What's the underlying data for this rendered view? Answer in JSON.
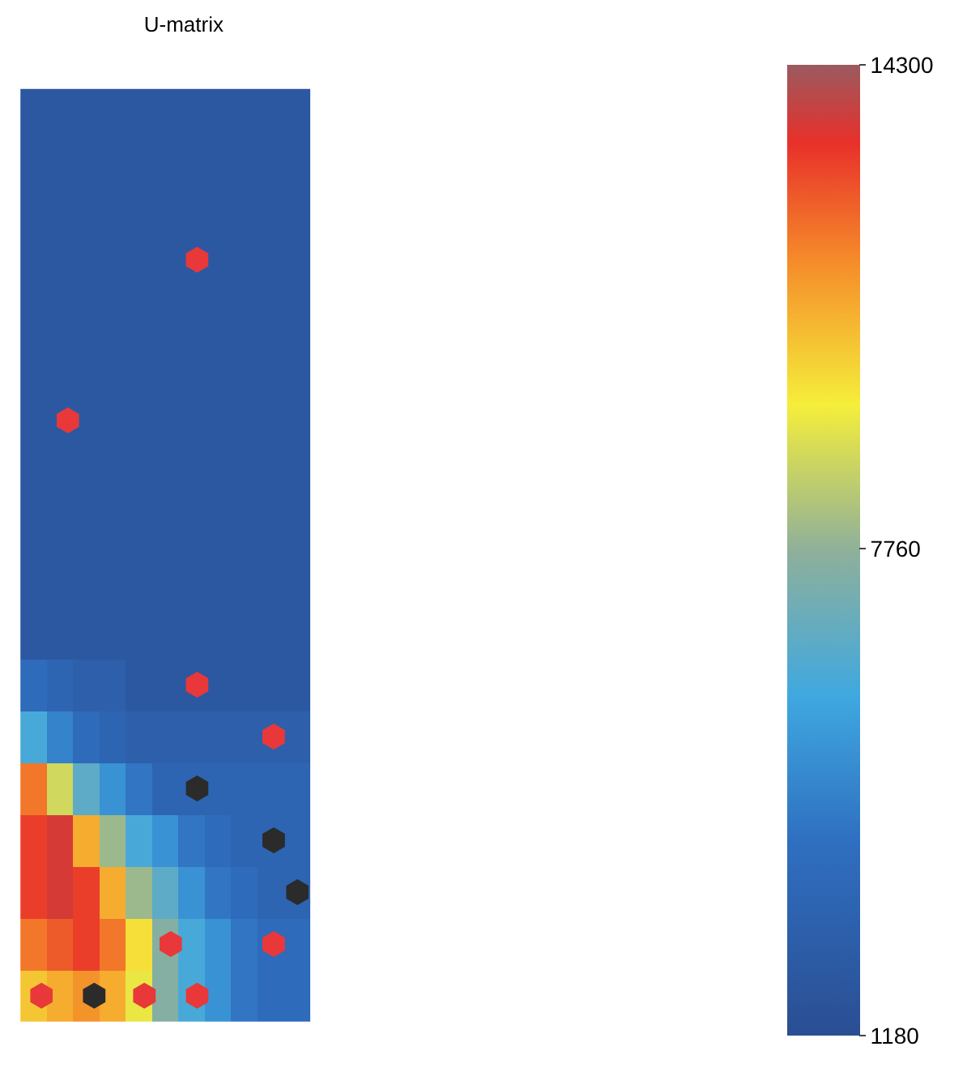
{
  "chart_data": {
    "type": "heatmap",
    "title": "U-matrix",
    "categories": [
      null,
      null,
      null,
      null,
      null,
      null,
      null,
      null,
      null,
      null,
      null
    ],
    "y_categories": [
      null,
      null,
      null,
      null,
      null,
      null,
      null,
      null,
      null,
      null,
      null,
      null,
      null,
      null,
      null,
      null,
      null,
      null
    ],
    "cells": [
      [
        2000,
        2000,
        2000,
        2000,
        2000,
        2000,
        2000,
        2000,
        2000,
        2000,
        2000
      ],
      [
        2000,
        2000,
        2000,
        2000,
        2000,
        2000,
        2000,
        2000,
        2000,
        2000,
        2000
      ],
      [
        2000,
        2000,
        2000,
        2000,
        2000,
        2000,
        2000,
        2000,
        2000,
        2000,
        2000
      ],
      [
        2000,
        2000,
        2000,
        2000,
        2000,
        2000,
        2000,
        2000,
        2000,
        2000,
        2000
      ],
      [
        2000,
        2000,
        2000,
        2000,
        2000,
        2000,
        2000,
        2000,
        2000,
        2000,
        2000
      ],
      [
        2000,
        2000,
        2000,
        2000,
        2000,
        2000,
        2000,
        2000,
        2000,
        2000,
        2000
      ],
      [
        2000,
        2000,
        2000,
        2000,
        2000,
        2000,
        2000,
        2000,
        2000,
        2000,
        2000
      ],
      [
        2000,
        2000,
        2000,
        2000,
        2000,
        2000,
        2000,
        2000,
        2000,
        2000,
        2000
      ],
      [
        2000,
        2000,
        2000,
        2000,
        2000,
        2000,
        2000,
        2000,
        2000,
        2000,
        2000
      ],
      [
        2000,
        2000,
        2000,
        2000,
        2000,
        2000,
        2000,
        2000,
        2000,
        2000,
        2000
      ],
      [
        2000,
        2000,
        2000,
        2000,
        2000,
        2000,
        2000,
        2000,
        2000,
        2000,
        2000
      ],
      [
        3500,
        3000,
        2500,
        2500,
        2000,
        2000,
        2000,
        2000,
        2000,
        2000,
        2000
      ],
      [
        6000,
        4500,
        3500,
        3000,
        2500,
        2500,
        2500,
        2500,
        2500,
        2500,
        2500
      ],
      [
        12000,
        9000,
        6500,
        5000,
        4000,
        3000,
        3000,
        3000,
        3000,
        3000,
        3000
      ],
      [
        13000,
        13500,
        11000,
        8000,
        6000,
        5000,
        4000,
        3500,
        3000,
        3000,
        3000
      ],
      [
        13000,
        13500,
        13000,
        11000,
        8000,
        6500,
        5000,
        4000,
        3500,
        3000,
        3000
      ],
      [
        12000,
        12500,
        13000,
        12000,
        10000,
        7500,
        6000,
        5000,
        4000,
        3500,
        3500
      ],
      [
        10500,
        11000,
        11500,
        11000,
        9500,
        7500,
        6000,
        5000,
        4000,
        3500,
        3500
      ]
    ],
    "clim": [
      1180,
      14300
    ],
    "cticks": [
      1180,
      7760,
      14300
    ]
  }
}
